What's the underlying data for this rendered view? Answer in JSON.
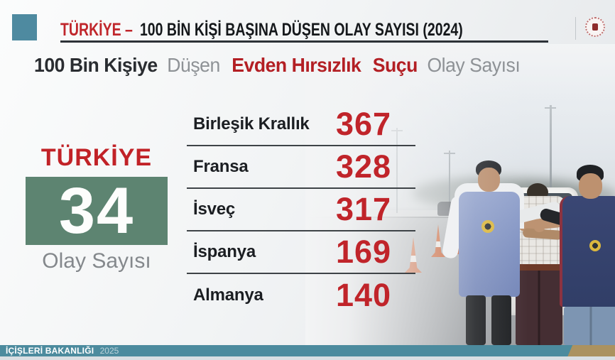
{
  "colors": {
    "accent_red": "#c0262b",
    "teal": "#4e8aa0",
    "footer_teal": "#4c8b9e",
    "footer_tan": "#ab9260",
    "green_box": "#5d8471",
    "dark_text": "#15181b",
    "gray_text": "#8e9296"
  },
  "header": {
    "title_prefix": "TÜRKİYE –",
    "title_rest": "100 BİN KİŞİ BAŞINA DÜŞEN OLAY SAYISI (2024)",
    "logo_name": "icisleri-bakanligi-emblem"
  },
  "subtitle": {
    "lead": "100 Bin Kişiye",
    "mid": "Düşen",
    "emphasis": "Evden Hırsızlık",
    "emphasis2": "Suçu",
    "tail": "Olay Sayısı"
  },
  "turkiye_panel": {
    "label": "TÜRKİYE",
    "value": "34",
    "caption": "Olay Sayısı"
  },
  "countries": [
    {
      "name": "Birleşik Krallık",
      "value": "367"
    },
    {
      "name": "Fransa",
      "value": "328"
    },
    {
      "name": "İsveç",
      "value": "317"
    },
    {
      "name": "İspanya",
      "value": "169"
    },
    {
      "name": "Almanya",
      "value": "140"
    }
  ],
  "chart_data": {
    "type": "table",
    "title": "TÜRKİYE – 100 BİN KİŞİ BAŞINA DÜŞEN OLAY SAYISI (2024)",
    "subtitle": "100 Bin Kişiye Düşen Evden Hırsızlık Suçu Olay Sayısı",
    "categories": [
      "Türkiye",
      "Birleşik Krallık",
      "Fransa",
      "İsveç",
      "İspanya",
      "Almanya"
    ],
    "values": [
      34,
      367,
      328,
      317,
      169,
      140
    ],
    "unit": "olay sayısı / 100 bin kişi",
    "year": "2024",
    "highlight_category": "Türkiye"
  },
  "footer": {
    "ministry": "İÇİŞLERİ BAKANLIĞI",
    "year": "2025"
  },
  "photo": {
    "subject": "jandarma-arrest-scene-highway"
  }
}
